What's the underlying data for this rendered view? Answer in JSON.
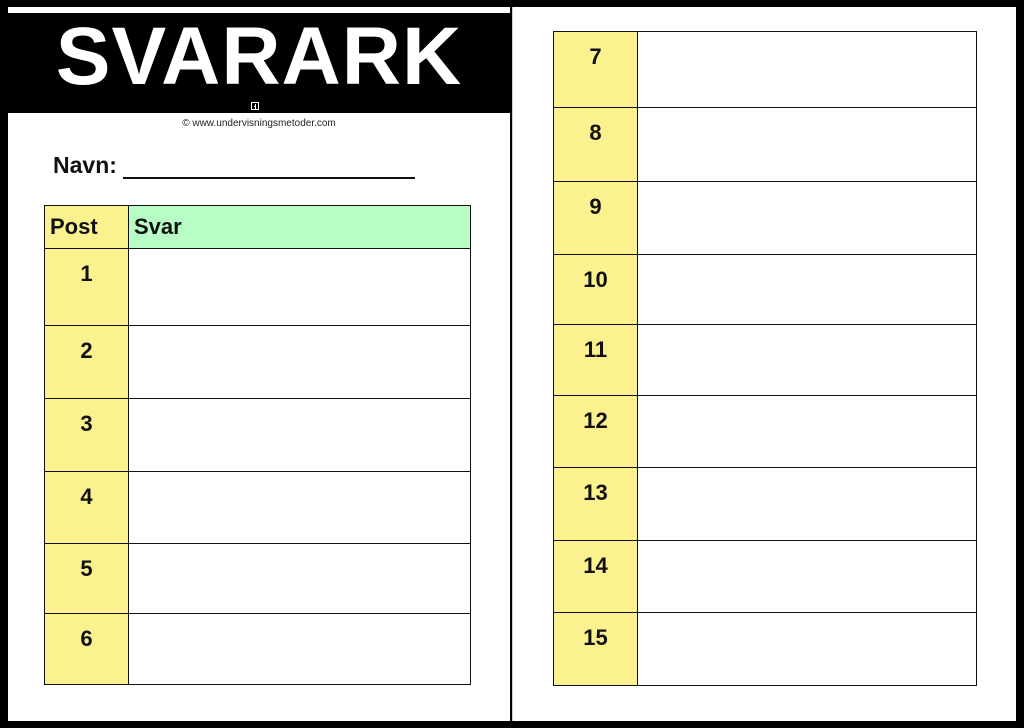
{
  "title": "SVARARK",
  "copyright": "© www.undervisningsmetoder.com",
  "name_label": "Navn:",
  "table": {
    "headers": {
      "post": "Post",
      "answer": "Svar"
    },
    "left_rows": [
      "1",
      "2",
      "3",
      "4",
      "5",
      "6"
    ],
    "right_rows": [
      "7",
      "8",
      "9",
      "10",
      "11",
      "12",
      "13",
      "14",
      "15"
    ]
  },
  "colors": {
    "post_column": "#fbf28f",
    "answer_header": "#b8fcc6",
    "banner": "#000000"
  }
}
